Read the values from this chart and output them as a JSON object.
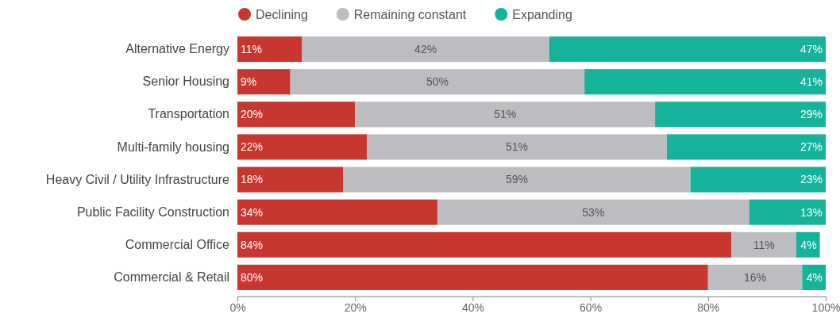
{
  "chart_data": {
    "type": "bar",
    "orientation": "horizontal",
    "stacked": true,
    "legend": "top",
    "grid": false,
    "categories": [
      "Alternative Energy",
      "Senior Housing",
      "Transportation",
      "Multi-family housing",
      "Heavy Civil / Utility Infrastructure",
      "Public Facility Construction",
      "Commercial Office",
      "Commercial & Retail"
    ],
    "xlim": [
      0,
      100
    ],
    "xticks": [
      {
        "value": 0,
        "label": "0%"
      },
      {
        "value": 20,
        "label": "20%"
      },
      {
        "value": 40,
        "label": "40%"
      },
      {
        "value": 60,
        "label": "60%"
      },
      {
        "value": 80,
        "label": "80%"
      },
      {
        "value": 100,
        "label": "100%"
      }
    ],
    "series": [
      {
        "name": "Declining",
        "color": "#c8372f",
        "values": [
          11,
          9,
          20,
          22,
          18,
          34,
          84,
          80
        ],
        "value_labels": [
          "11%",
          "9%",
          "20%",
          "22%",
          "18%",
          "34%",
          "84%",
          "80%"
        ]
      },
      {
        "name": "Remaining constant",
        "color": "#bcbdc0",
        "values": [
          42,
          50,
          51,
          51,
          59,
          53,
          11,
          16
        ],
        "value_labels": [
          "42%",
          "50%",
          "51%",
          "51%",
          "59%",
          "53%",
          "11%",
          "16%"
        ]
      },
      {
        "name": "Expanding",
        "color": "#14b39a",
        "values": [
          47,
          41,
          29,
          27,
          23,
          13,
          4,
          4
        ],
        "value_labels": [
          "47%",
          "41%",
          "29%",
          "27%",
          "23%",
          "13%",
          "4%",
          "4%"
        ]
      }
    ]
  }
}
